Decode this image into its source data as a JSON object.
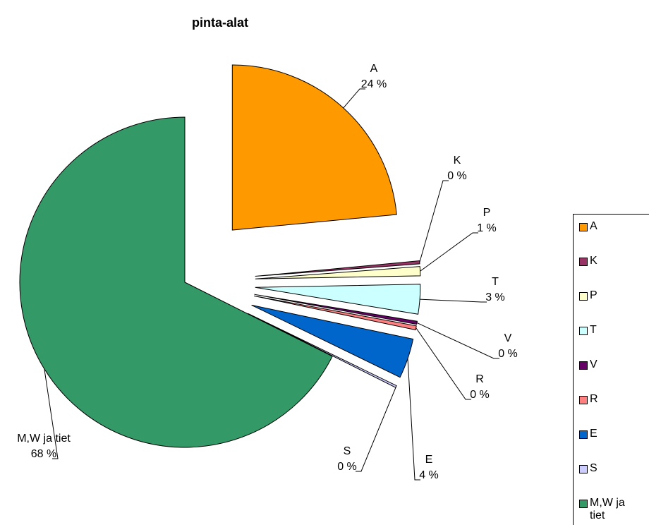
{
  "chart_data": {
    "type": "pie",
    "title": "pinta-alat",
    "categories": [
      "A",
      "K",
      "P",
      "T",
      "V",
      "R",
      "E",
      "S",
      "M,W ja tiet"
    ],
    "values": [
      23.5,
      0.3,
      0.9,
      2.9,
      0.3,
      0.4,
      3.9,
      0.2,
      67.6
    ],
    "value_labels": [
      "24 %",
      "0 %",
      "1 %",
      "3 %",
      "0 %",
      "0 %",
      "4 %",
      "0 %",
      "68 %"
    ],
    "colors": [
      "#ff9900",
      "#993366",
      "#ffffcc",
      "#ccffff",
      "#660066",
      "#ff8080",
      "#0066cc",
      "#ccccff",
      "#339966"
    ]
  }
}
